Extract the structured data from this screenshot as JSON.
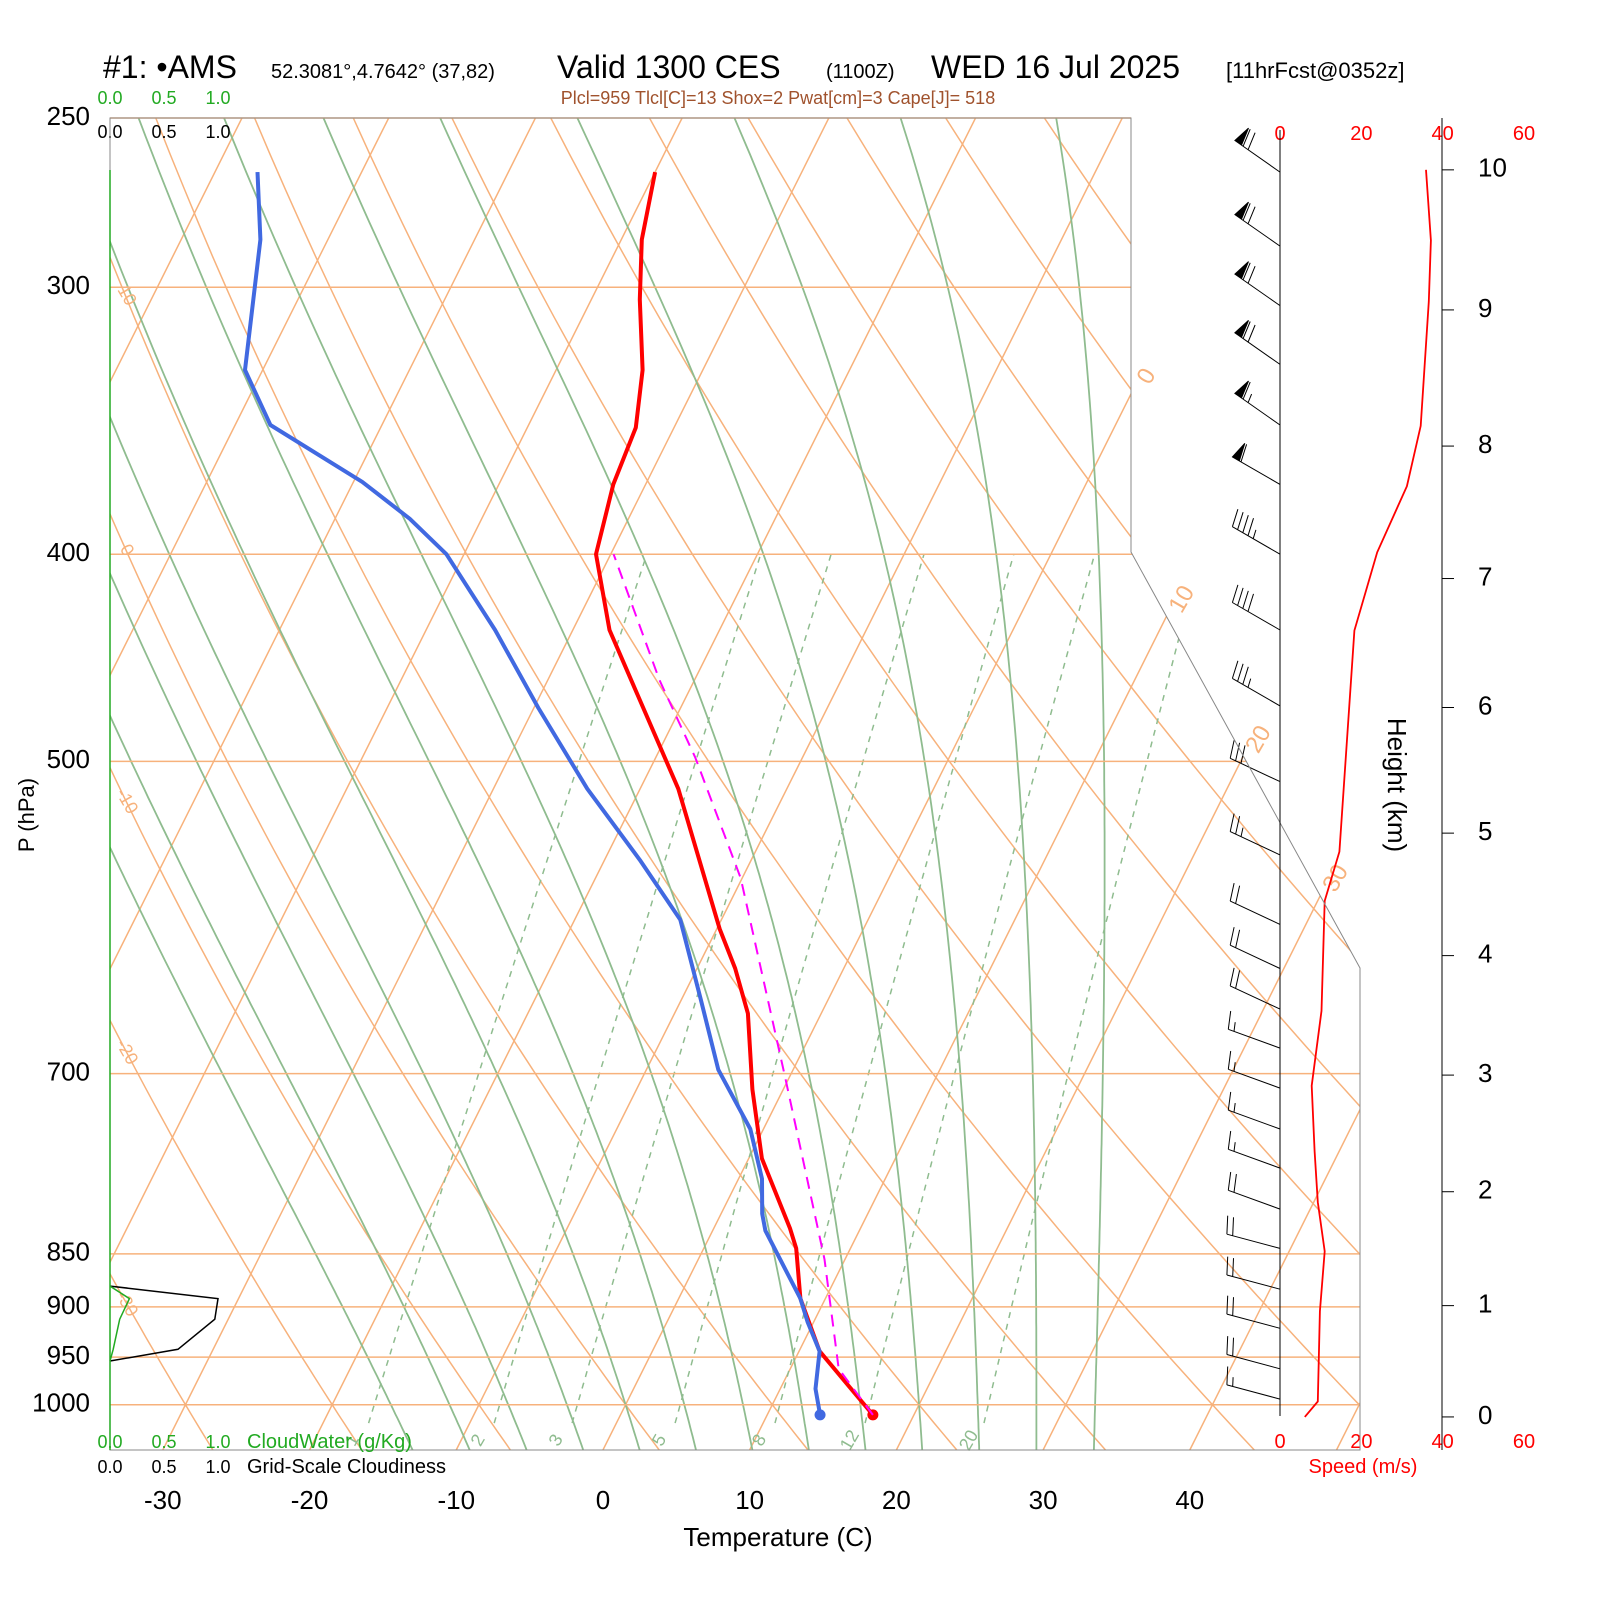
{
  "chart_data": {
    "type": "skewt",
    "title_parts": [
      "#1: •AMS",
      "52.3081°,4.7642° (37,82)",
      "Valid 1300 CES",
      "(1100Z)",
      "WED 16 Jul 2025",
      "[11hrFcst@0352z]"
    ],
    "subtitle": "Plcl=959 Tlcl[C]=13 Shox=2 Pwat[cm]=3 Cape[J]= 518",
    "xlabel": "Temperature (C)",
    "ylabel": "P (hPa)",
    "xlim": [
      -33.6,
      51.6
    ],
    "xticks": [
      -30,
      -20,
      -10,
      0,
      10,
      20,
      30,
      40
    ],
    "ylim": [
      1050,
      250
    ],
    "yticks": [
      250,
      300,
      400,
      500,
      700,
      850,
      900,
      950,
      1000
    ],
    "ylog": true,
    "series": [
      {
        "color": "#ff0000",
        "dash": false,
        "pressure": [
          1011,
          944,
          892,
          845,
          827,
          767,
          712,
          656,
          625,
          599,
          515,
          434,
          400,
          371,
          349,
          328,
          304,
          285,
          265
        ],
        "values": [
          17.2,
          11.4,
          8.3,
          6.3,
          5.2,
          0.9,
          -2.1,
          -5.0,
          -7.4,
          -9.8,
          -17.4,
          -27.5,
          -31.0,
          -32.2,
          -32.6,
          -34.1,
          -36.7,
          -38.6,
          -40.0
        ]
      },
      {
        "color": "#4169e1",
        "dash": false,
        "pressure": [
          1011,
          983,
          944,
          915,
          892,
          829,
          814,
          784,
          743,
          724,
          697,
          646,
          593,
          556,
          515,
          472,
          434,
          400,
          385,
          370,
          348,
          328,
          285,
          265
        ],
        "values": [
          13.6,
          12.4,
          11.4,
          9.6,
          8.3,
          3.6,
          2.8,
          1.6,
          -0.9,
          -2.6,
          -5.1,
          -8.7,
          -12.8,
          -17.6,
          -23.6,
          -29.7,
          -35.3,
          -41.2,
          -44.9,
          -49.4,
          -57.6,
          -61.2,
          -64.6,
          -67.1
        ]
      },
      {
        "color": "#ff00ff",
        "dash": true,
        "pressure": [
          1011,
          962,
          855,
          704,
          567,
          498,
          458,
          400
        ],
        "values": [
          17.2,
          13.3,
          8.6,
          -0.2,
          -10.1,
          -17.3,
          -22.4,
          -29.8
        ]
      }
    ],
    "isotherms": {
      "color": "#f7b27c",
      "values": [
        -80,
        -70,
        -60,
        -50,
        -40,
        -30,
        -20,
        -10,
        0,
        10,
        20,
        30,
        40,
        50
      ],
      "labeled": [
        0,
        10,
        20,
        30
      ]
    },
    "dry_adiabats": {
      "color": "#f7b27c",
      "values": [
        -30,
        -20,
        -10,
        0,
        10,
        20,
        30,
        40,
        50,
        60,
        70,
        80,
        90,
        100,
        110,
        120,
        130,
        140,
        150,
        160
      ],
      "labeled": [
        -30,
        -20,
        -10,
        0,
        10
      ]
    },
    "moist_adiabats": {
      "color": "#8fbc8f",
      "values": [
        -16,
        -12,
        -8,
        -4,
        0,
        4,
        8,
        12,
        16,
        20,
        24,
        28,
        32
      ]
    },
    "mixing_ratios": {
      "color": "#8fbc8f",
      "values": [
        1,
        2,
        3,
        5,
        8,
        12,
        20
      ],
      "ptop": 400
    },
    "wind": {
      "pressure": [
        265,
        287,
        306,
        326,
        348,
        371,
        400,
        434,
        471,
        511,
        553,
        596,
        625,
        653,
        681,
        711,
        743,
        775,
        810,
        845,
        883,
        921,
        962,
        994
      ],
      "speed": [
        70,
        72,
        70,
        68,
        66,
        60,
        45,
        40,
        35,
        30,
        25,
        22,
        20,
        20,
        17,
        15,
        15,
        16,
        18,
        20,
        20,
        19,
        18,
        15
      ],
      "direction": [
        305,
        305,
        305,
        305,
        305,
        300,
        300,
        300,
        300,
        295,
        295,
        295,
        295,
        295,
        290,
        290,
        290,
        290,
        290,
        285,
        285,
        285,
        285,
        285
      ]
    },
    "speed_profile": {
      "xlabel": "Speed (m/s)",
      "color": "#ff0000",
      "xlim": [
        0,
        60
      ],
      "xticks": [
        0,
        20,
        40,
        60
      ],
      "height": [
        0,
        0.14,
        0.95,
        1.48,
        1.91,
        2.35,
        2.91,
        3.54,
        4.45,
        4.85,
        6.6,
        7.2,
        7.7,
        8.15,
        9.06,
        9.5,
        10.0
      ],
      "values": [
        6.1,
        9.3,
        9.8,
        11.0,
        9.3,
        8.5,
        7.8,
        10.2,
        11.0,
        14.6,
        18.3,
        23.9,
        31.2,
        34.6,
        36.6,
        37.1,
        35.9
      ]
    },
    "height_axis": {
      "label": "Height (km)",
      "ticks": [
        0,
        1,
        2,
        3,
        4,
        5,
        6,
        7,
        8,
        9,
        10
      ]
    },
    "cloud": {
      "water_label": "CloudWater (g/Kg)",
      "cover_label": "Grid-Scale Cloudiness",
      "water_color": "#22aa22",
      "cover_color": "#000000",
      "xlim": [
        0,
        1
      ],
      "xticks": [
        {
          "value": 0,
          "label": "0.0"
        },
        {
          "value": 0.5,
          "label": "0.5"
        },
        {
          "value": 1,
          "label": "1.0"
        }
      ],
      "pressure": [
        880,
        892,
        912,
        942,
        954
      ],
      "cover": [
        0,
        1.0,
        0.97,
        0.63,
        0
      ],
      "water": [
        0,
        0.18,
        0.09,
        0.03,
        0
      ]
    }
  }
}
